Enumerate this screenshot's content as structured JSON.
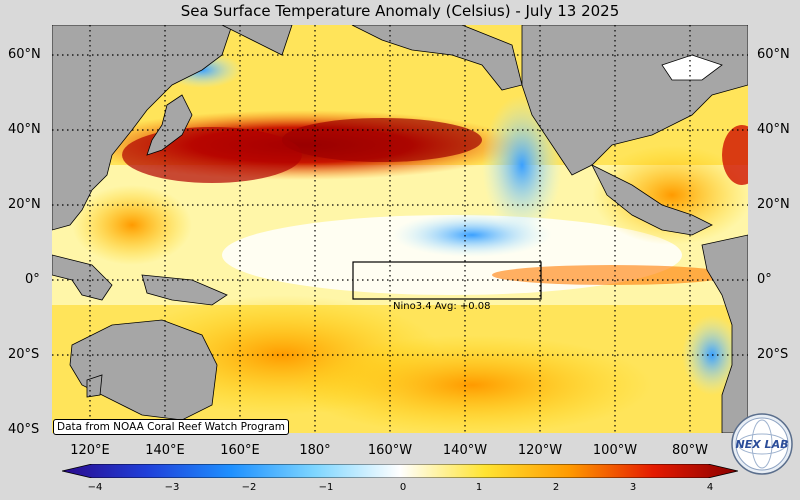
{
  "title": "Sea Surface Temperature Anomaly (Celsius) - July 13 2025",
  "lat_labels": [
    "60°N",
    "40°N",
    "20°N",
    "0°",
    "20°S",
    "40°S"
  ],
  "lon_labels": [
    "120°E",
    "140°E",
    "160°E",
    "180°",
    "160°W",
    "140°W",
    "120°W",
    "100°W",
    "80°W"
  ],
  "nino_box": {
    "label": "Nino3.4 Avg: +0.08",
    "lon_range": [
      "170°W",
      "120°W"
    ],
    "lat_range": [
      "5°S",
      "5°N"
    ]
  },
  "credit": "Data from NOAA Coral Reef Watch Program",
  "colorbar": {
    "ticks": [
      "−4",
      "−3",
      "−2",
      "−1",
      "0",
      "1",
      "2",
      "3",
      "4"
    ],
    "range": [
      -4,
      4
    ],
    "colors": [
      "#2b0a8c",
      "#1f3fd9",
      "#1e90ff",
      "#7fd6ff",
      "#ffffff",
      "#ffe433",
      "#ff9a00",
      "#e41a00",
      "#8a0000"
    ]
  },
  "logo": {
    "text": "NEX LAB"
  },
  "colors": {
    "land": "#a6a6a6",
    "ocean_neutral": "#ffffff",
    "background": "#d9d9d9"
  }
}
